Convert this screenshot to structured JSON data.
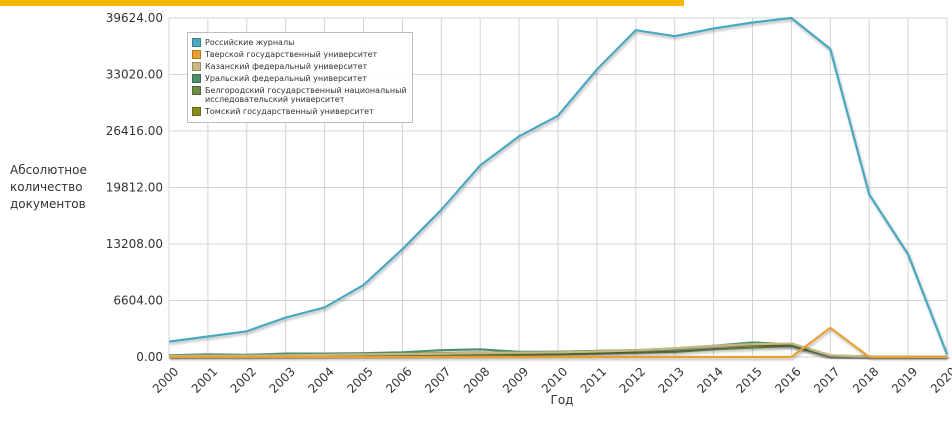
{
  "chart_data": {
    "type": "line",
    "title": "",
    "xlabel": "Год",
    "ylabel_lines": [
      "Абсолютное",
      "количество",
      "документов"
    ],
    "x": [
      "2000",
      "2001",
      "2002",
      "2003",
      "2004",
      "2005",
      "2006",
      "2007",
      "2008",
      "2009",
      "2010",
      "2011",
      "2012",
      "2013",
      "2014",
      "2015",
      "2016",
      "2017",
      "2018",
      "2019",
      "2020"
    ],
    "yticks": [
      "0.00",
      "6604.00",
      "13208.00",
      "19812.00",
      "26416.00",
      "33020.00",
      "39624.00"
    ],
    "ylim": [
      0,
      39624
    ],
    "grid": true,
    "legend_position": "top-left",
    "series": [
      {
        "name": "Российские журналы",
        "color": "#4aa8c0",
        "values": [
          1800,
          2400,
          3000,
          4600,
          5800,
          8400,
          12600,
          17200,
          22400,
          25800,
          28200,
          33600,
          38200,
          37500,
          38400,
          39100,
          39624,
          36000,
          19000,
          12000,
          300
        ]
      },
      {
        "name": "Тверской государственный университет",
        "color": "#e8a030",
        "values": [
          0,
          0,
          0,
          0,
          0,
          0,
          0,
          0,
          0,
          0,
          0,
          0,
          0,
          0,
          0,
          0,
          0,
          3400,
          0,
          0,
          0
        ]
      },
      {
        "name": "Казанский федеральный университет",
        "color": "#c8b882",
        "values": [
          100,
          150,
          150,
          200,
          250,
          300,
          350,
          400,
          500,
          500,
          550,
          650,
          800,
          1000,
          1300,
          1500,
          1600,
          200,
          50,
          0,
          0
        ]
      },
      {
        "name": "Уральский федеральный университет",
        "color": "#4e8f6e",
        "values": [
          200,
          300,
          250,
          400,
          400,
          450,
          550,
          800,
          900,
          600,
          600,
          700,
          800,
          900,
          1300,
          1700,
          1500,
          200,
          50,
          0,
          0
        ]
      },
      {
        "name": "Белгородский государственный национальный исследовательский университет",
        "color": "#6f8a45",
        "values": [
          50,
          60,
          60,
          70,
          80,
          100,
          120,
          150,
          200,
          250,
          300,
          400,
          500,
          600,
          900,
          1100,
          1300,
          100,
          20,
          0,
          0
        ]
      },
      {
        "name": "Томский государственный университет",
        "color": "#8a8a1e",
        "values": [
          150,
          200,
          200,
          250,
          300,
          350,
          400,
          450,
          500,
          550,
          600,
          700,
          800,
          1000,
          1300,
          1400,
          1400,
          150,
          30,
          0,
          0
        ]
      }
    ]
  }
}
